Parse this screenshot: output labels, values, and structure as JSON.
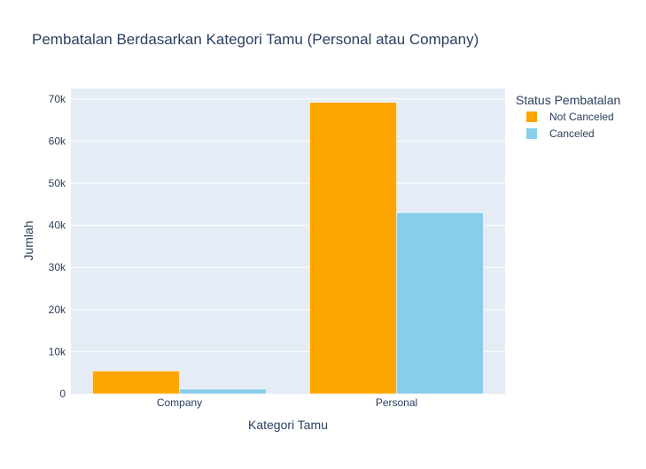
{
  "chart_data": {
    "type": "bar",
    "title": "Pembatalan Berdasarkan Kategori Tamu (Personal atau Company)",
    "xlabel": "Kategori Tamu",
    "ylabel": "Jumlah",
    "categories": [
      "Company",
      "Personal"
    ],
    "series": [
      {
        "name": "Not Canceled",
        "color": "#FFA500",
        "values": [
          5400,
          69200
        ]
      },
      {
        "name": "Canceled",
        "color": "#87CEEB",
        "values": [
          1100,
          43000
        ]
      }
    ],
    "ylim": [
      0,
      72500
    ],
    "yticks": [
      0,
      10000,
      20000,
      30000,
      40000,
      50000,
      60000,
      70000
    ],
    "ytick_labels": [
      "0",
      "10k",
      "20k",
      "30k",
      "40k",
      "50k",
      "60k",
      "70k"
    ],
    "legend": {
      "title": "Status Pembatalan",
      "position": "top-right"
    },
    "grid": true,
    "plot_background": "#E5ECF6",
    "text_color": "#2a3f5f"
  }
}
